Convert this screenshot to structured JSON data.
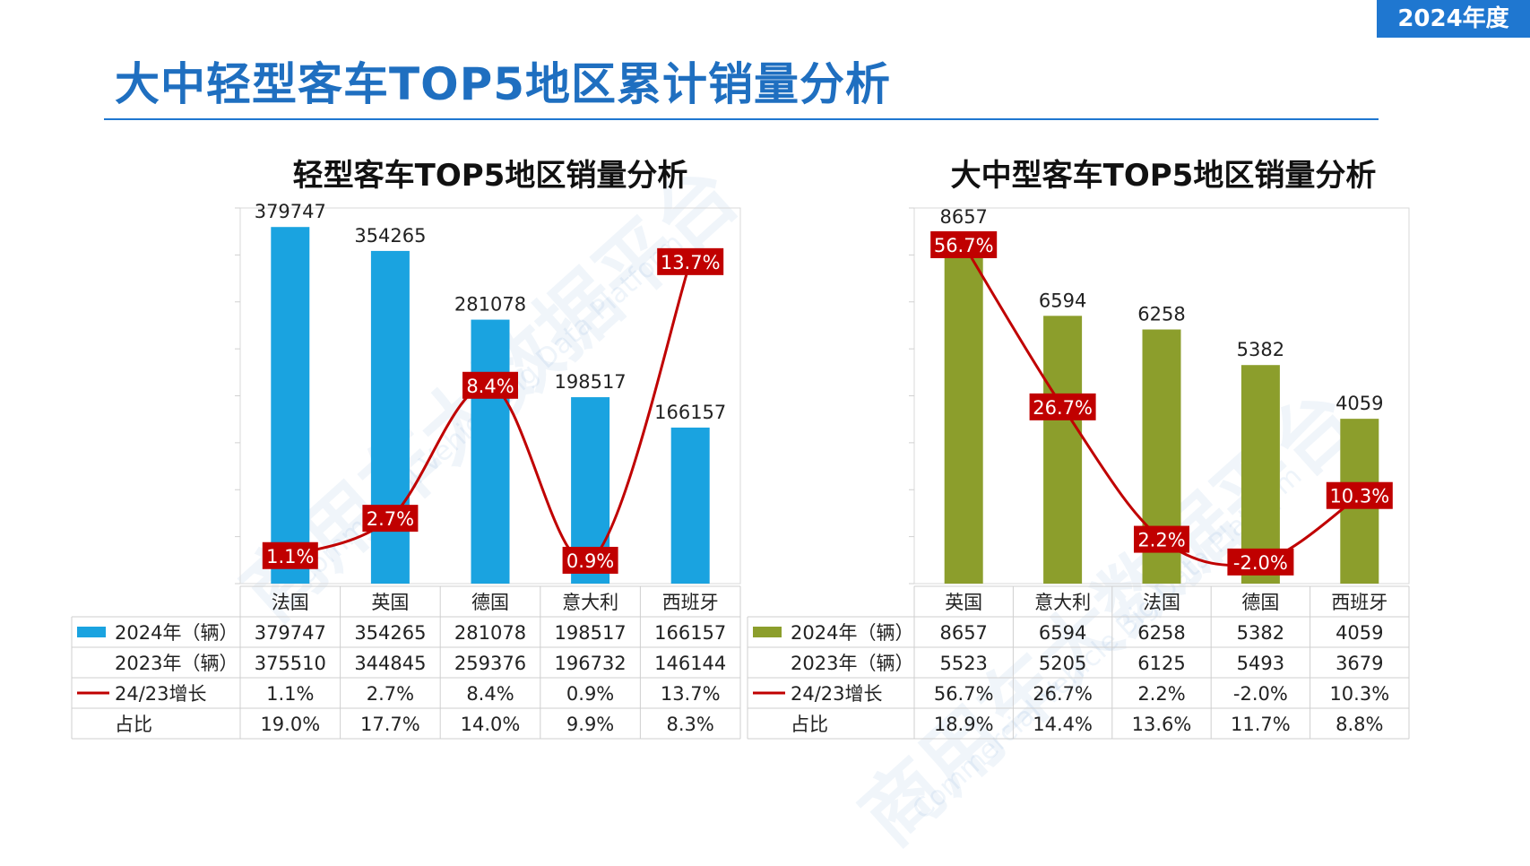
{
  "badge": "2024年度",
  "page_title": "大中轻型客车TOP5地区累计销量分析",
  "watermark": {
    "main": "商用车大数据平台",
    "sub": "Commercial Vehicle Big Data Platform"
  },
  "colors": {
    "light_bar": "#1aa3e0",
    "heavy_bar": "#8c9e2c",
    "growth_line": "#c00000",
    "label_bg": "#c00000",
    "accent": "#1f77d0"
  },
  "chart_data": [
    {
      "type": "bar",
      "title": "轻型客车TOP5地区销量分析",
      "categories": [
        "法国",
        "英国",
        "德国",
        "意大利",
        "西班牙"
      ],
      "series": [
        {
          "name": "2024年（辆）",
          "values": [
            379747,
            354265,
            281078,
            198517,
            166157
          ]
        },
        {
          "name": "2023年（辆）",
          "values": [
            375510,
            344845,
            259376,
            196732,
            146144
          ]
        },
        {
          "name": "24/23增长",
          "values": [
            1.1,
            2.7,
            8.4,
            0.9,
            13.7
          ],
          "labels": [
            "1.1%",
            "2.7%",
            "8.4%",
            "0.9%",
            "13.7%"
          ]
        },
        {
          "name": "占比",
          "labels": [
            "19.0%",
            "17.7%",
            "14.0%",
            "9.9%",
            "8.3%"
          ]
        }
      ],
      "ylim": [
        0,
        400000
      ],
      "growth_lim": [
        -0.1,
        16.0
      ]
    },
    {
      "type": "bar",
      "title": "大中型客车TOP5地区销量分析",
      "categories": [
        "英国",
        "意大利",
        "法国",
        "德国",
        "西班牙"
      ],
      "series": [
        {
          "name": "2024年（辆）",
          "values": [
            8657,
            6594,
            6258,
            5382,
            4059
          ]
        },
        {
          "name": "2023年（辆）",
          "values": [
            5523,
            5205,
            6125,
            5493,
            3679
          ]
        },
        {
          "name": "24/23增长",
          "values": [
            56.7,
            26.7,
            2.2,
            -2.0,
            10.3
          ],
          "labels": [
            "56.7%",
            "26.7%",
            "2.2%",
            "-2.0%",
            "10.3%"
          ]
        },
        {
          "name": "占比",
          "labels": [
            "18.9%",
            "14.4%",
            "13.6%",
            "11.7%",
            "8.8%"
          ]
        }
      ],
      "ylim": [
        0,
        9250
      ],
      "growth_lim": [
        -6.0,
        63.5
      ]
    }
  ]
}
